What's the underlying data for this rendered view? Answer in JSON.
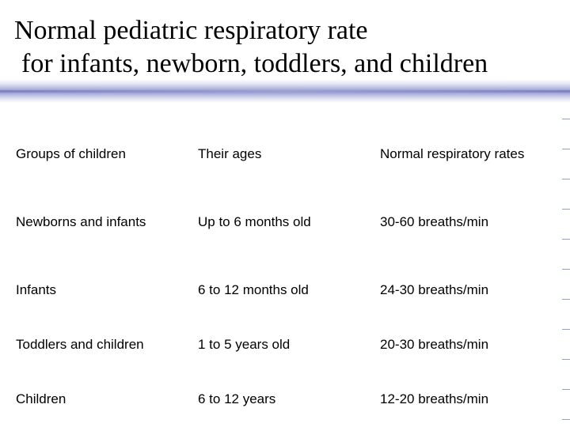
{
  "slide": {
    "title_line1": "Normal pediatric respiratory rate",
    "title_line2": "for infants, newborn, toddlers, and children"
  },
  "table": {
    "headers": [
      "Groups of children",
      "Their ages",
      "Normal respiratory rates"
    ],
    "rows": [
      [
        "Newborns and infants",
        "Up to 6 months old",
        "30-60 breaths/min"
      ],
      [
        "Infants",
        "6 to 12 months old",
        "24-30 breaths/min"
      ],
      [
        "Toddlers and children",
        "1 to 5 years old",
        "20-30 breaths/min"
      ],
      [
        "Children",
        "6 to 12 years",
        "12-20 breaths/min"
      ]
    ]
  },
  "colors": {
    "title_text": "#000000",
    "rule_band": "#8e93cc",
    "background": "#ffffff"
  }
}
